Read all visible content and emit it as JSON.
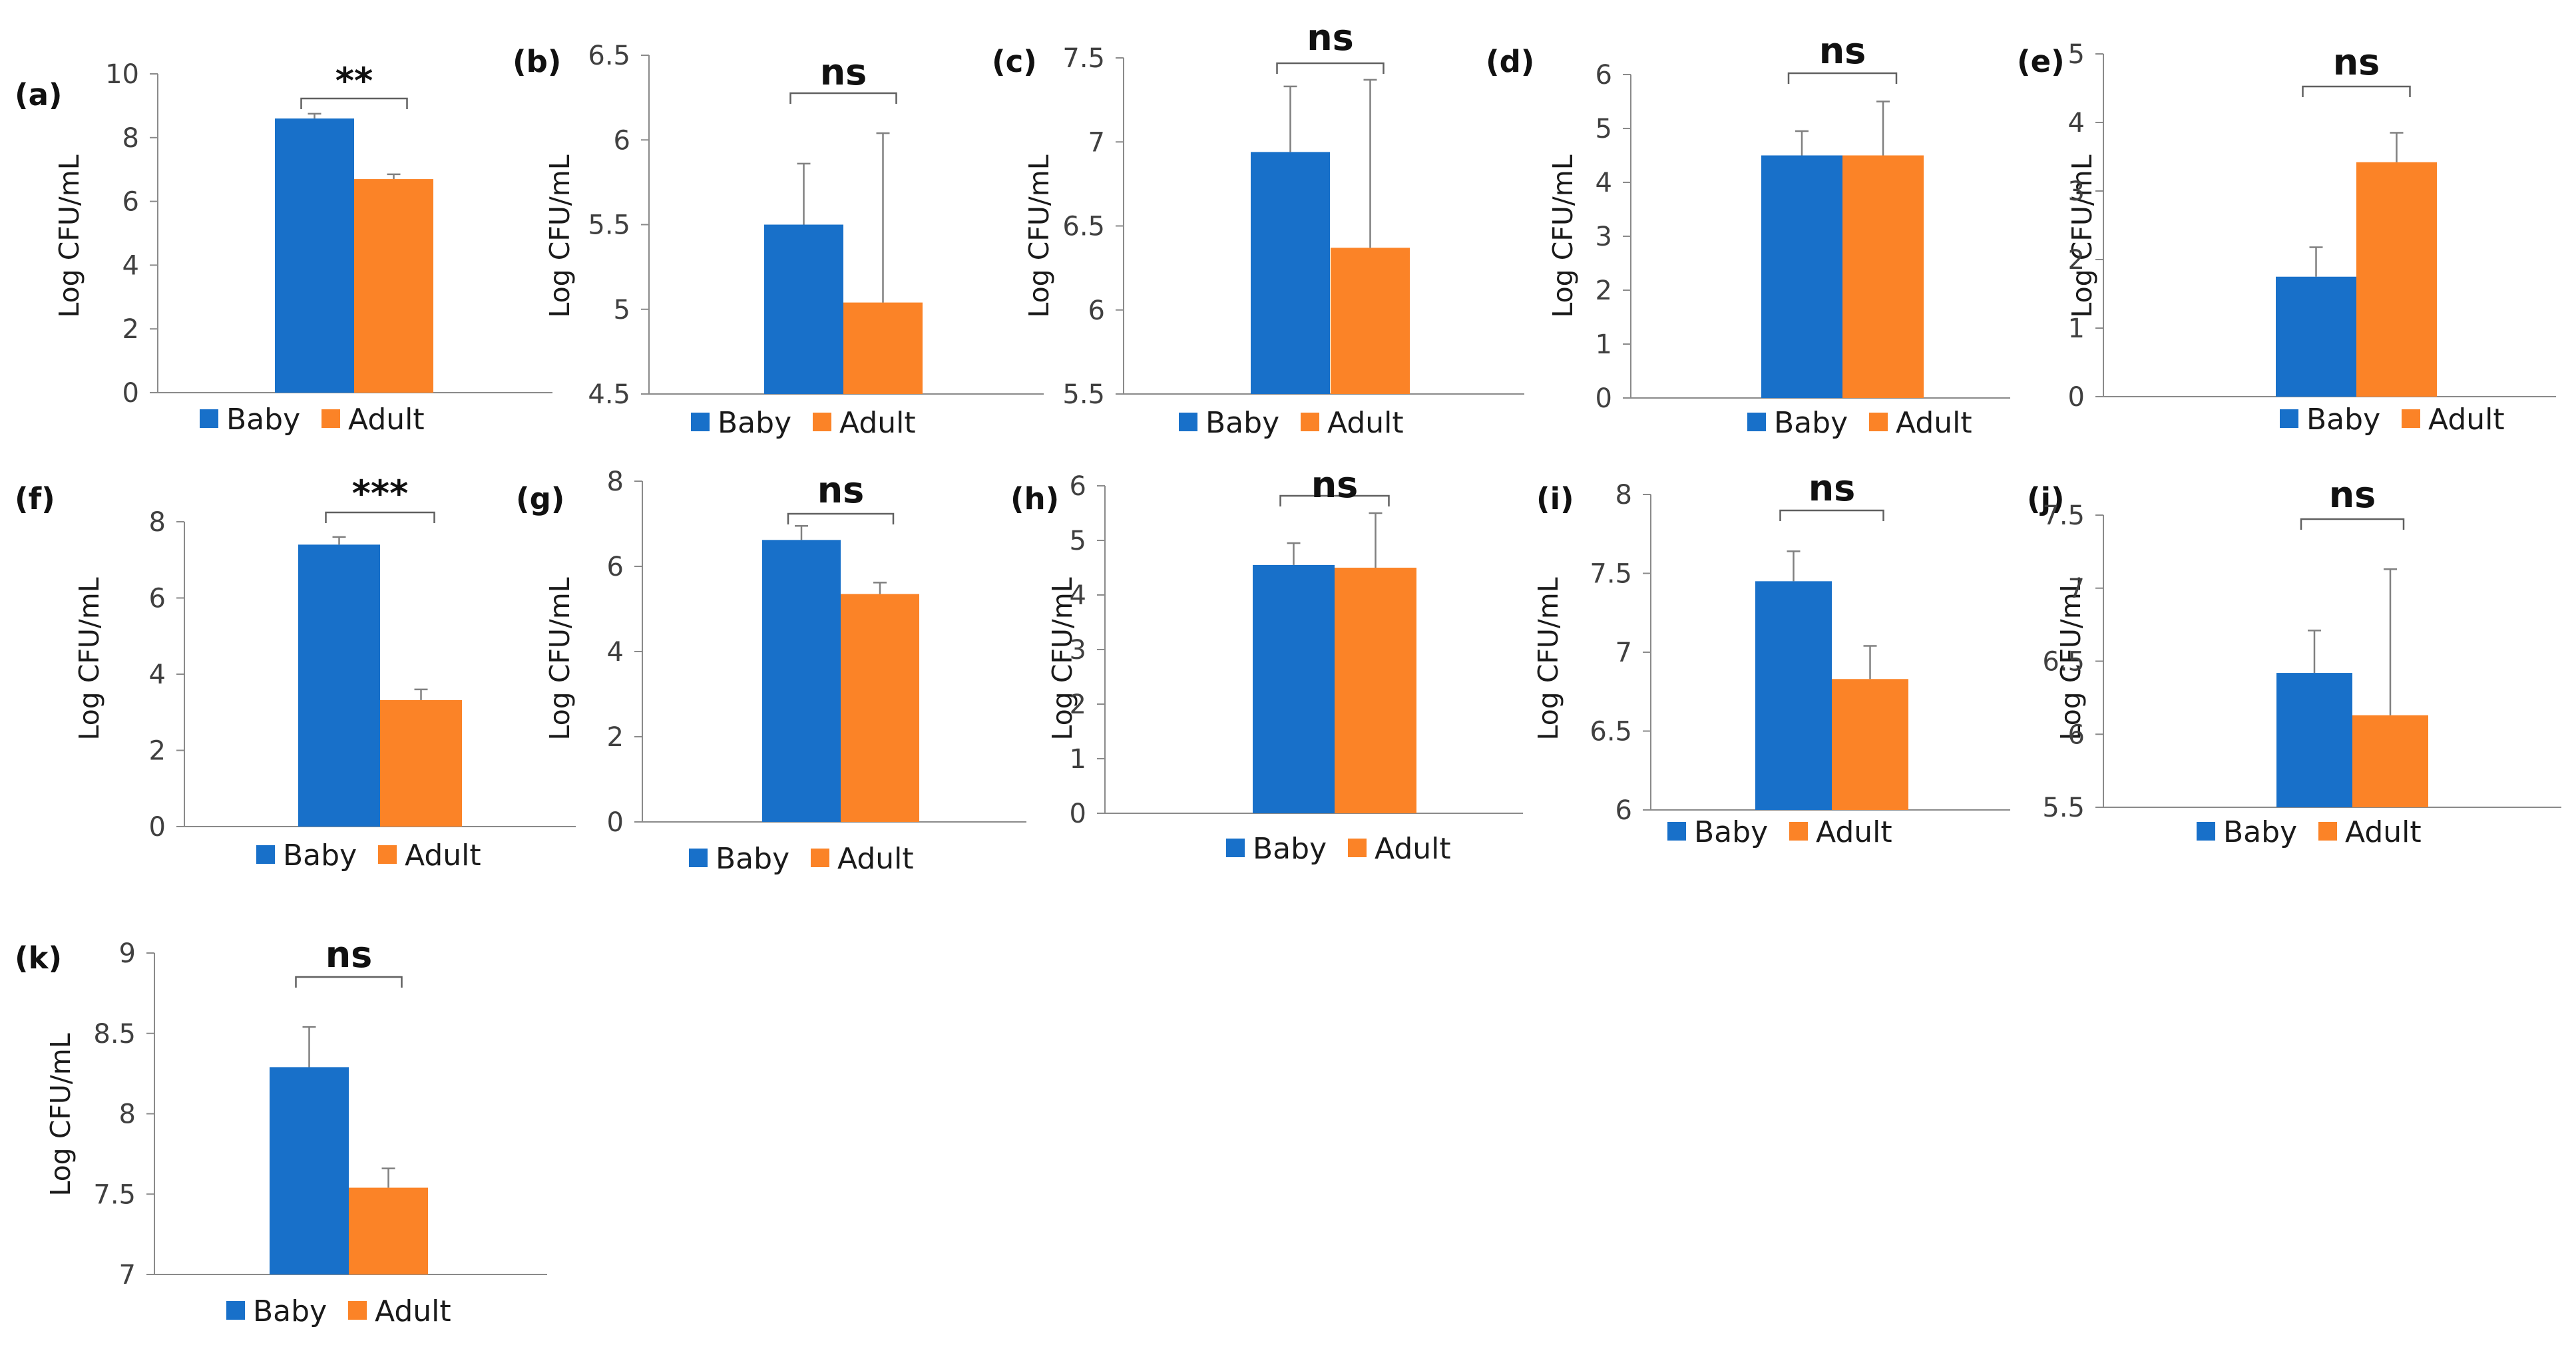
{
  "colors": {
    "baby": "#1870C9",
    "adult": "#FB8327",
    "axis": "#8A8A8A",
    "error": "#808080",
    "bracket": "#606060"
  },
  "legend": {
    "baby": "Baby",
    "adult": "Adult"
  },
  "chart_data": [
    {
      "id": "a",
      "panel_label": "(a)",
      "type": "bar",
      "ylabel": "Log CFU/mL",
      "ylim": [
        0,
        10
      ],
      "yticks": [
        "0",
        "2",
        "4",
        "6",
        "8",
        "10"
      ],
      "categories": [
        "Baby",
        "Adult"
      ],
      "values": [
        8.6,
        6.7
      ],
      "errors": [
        0.15,
        0.15
      ],
      "significance": "**"
    },
    {
      "id": "b",
      "panel_label": "(b)",
      "type": "bar",
      "ylabel": "Log CFU/mL",
      "ylim": [
        4.5,
        6.5
      ],
      "yticks": [
        "4.5",
        "5",
        "5.5",
        "6",
        "6.5"
      ],
      "categories": [
        "Baby",
        "Adult"
      ],
      "values": [
        5.5,
        5.04
      ],
      "errors": [
        0.36,
        1.0
      ],
      "significance": "ns"
    },
    {
      "id": "c",
      "panel_label": "(c)",
      "type": "bar",
      "ylabel": "Log CFU/mL",
      "ylim": [
        5.5,
        7.5
      ],
      "yticks": [
        "5.5",
        "6",
        "6.5",
        "7",
        "7.5"
      ],
      "categories": [
        "Baby",
        "Adult"
      ],
      "values": [
        6.94,
        6.37
      ],
      "errors": [
        0.39,
        1.0
      ],
      "significance": "ns"
    },
    {
      "id": "d",
      "panel_label": "(d)",
      "type": "bar",
      "ylabel": "Log CFU/mL",
      "ylim": [
        0,
        6
      ],
      "yticks": [
        "0",
        "1",
        "2",
        "3",
        "4",
        "5",
        "6"
      ],
      "categories": [
        "Baby",
        "Adult"
      ],
      "values": [
        4.5,
        4.5
      ],
      "errors": [
        0.45,
        1.0
      ],
      "significance": "ns"
    },
    {
      "id": "e",
      "panel_label": "(e)",
      "type": "bar",
      "ylabel": "Log CFU/mL",
      "ylim": [
        0,
        5
      ],
      "yticks": [
        "0",
        "1",
        "2",
        "3",
        "4",
        "5"
      ],
      "categories": [
        "Baby",
        "Adult"
      ],
      "values": [
        1.75,
        3.42
      ],
      "errors": [
        0.43,
        0.43
      ],
      "significance": "ns"
    },
    {
      "id": "f",
      "panel_label": "(f)",
      "type": "bar",
      "ylabel": "Log CFU/mL",
      "ylim": [
        0,
        8
      ],
      "yticks": [
        "0",
        "2",
        "4",
        "6",
        "8"
      ],
      "categories": [
        "Baby",
        "Adult"
      ],
      "values": [
        7.4,
        3.32
      ],
      "errors": [
        0.2,
        0.28
      ],
      "significance": "***"
    },
    {
      "id": "g",
      "panel_label": "(g)",
      "type": "bar",
      "ylabel": "Log CFU/mL",
      "ylim": [
        0,
        8
      ],
      "yticks": [
        "0",
        "2",
        "4",
        "6",
        "8"
      ],
      "categories": [
        "Baby",
        "Adult"
      ],
      "values": [
        6.62,
        5.35
      ],
      "errors": [
        0.33,
        0.27
      ],
      "significance": "ns"
    },
    {
      "id": "h",
      "panel_label": "(h)",
      "type": "bar",
      "ylabel": "Log CFU/mL",
      "ylim": [
        0,
        6
      ],
      "yticks": [
        "0",
        "1",
        "2",
        "3",
        "4",
        "5",
        "6"
      ],
      "categories": [
        "Baby",
        "Adult"
      ],
      "values": [
        4.55,
        4.5
      ],
      "errors": [
        0.4,
        1.0
      ],
      "significance": "ns"
    },
    {
      "id": "i",
      "panel_label": "(i)",
      "type": "bar",
      "ylabel": "Log CFU/mL",
      "ylim": [
        6,
        8
      ],
      "yticks": [
        "6",
        "6.5",
        "7",
        "7.5",
        "8"
      ],
      "categories": [
        "Baby",
        "Adult"
      ],
      "values": [
        7.45,
        6.83
      ],
      "errors": [
        0.19,
        0.21
      ],
      "significance": "ns"
    },
    {
      "id": "j",
      "panel_label": "(j)",
      "type": "bar",
      "ylabel": "Log CFU/mL",
      "ylim": [
        5.5,
        7.5
      ],
      "yticks": [
        "5.5",
        "6",
        "6.5",
        "7",
        "7.5"
      ],
      "categories": [
        "Baby",
        "Adult"
      ],
      "values": [
        6.42,
        6.13
      ],
      "errors": [
        0.29,
        1.0
      ],
      "significance": "ns"
    },
    {
      "id": "k",
      "panel_label": "(k)",
      "type": "bar",
      "ylabel": "Log CFU/mL",
      "ylim": [
        7,
        9
      ],
      "yticks": [
        "7",
        "7.5",
        "8",
        "8.5",
        "9"
      ],
      "categories": [
        "Baby",
        "Adult"
      ],
      "values": [
        8.29,
        7.54
      ],
      "errors": [
        0.25,
        0.12
      ],
      "significance": "ns"
    }
  ]
}
